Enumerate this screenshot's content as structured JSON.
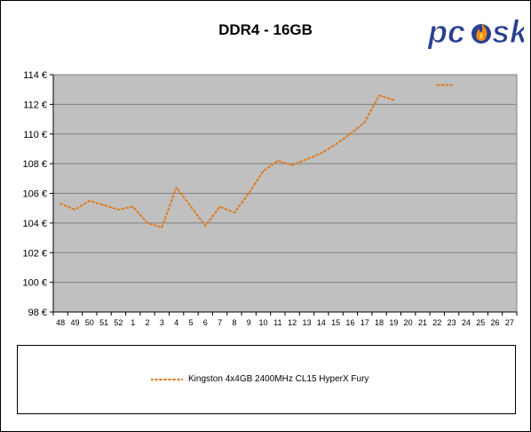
{
  "colors": {
    "plot_background": "#c0c0c0",
    "series_line": "#e07b20",
    "grid": "#808080"
  },
  "logo": {
    "text": "pcšsk",
    "icon": "flame-logo-icon",
    "colors": {
      "text": "#2a3f8f",
      "flame": "#f08a1c"
    }
  },
  "chart_data": {
    "type": "line",
    "title": "DDR4 - 16GB",
    "xlabel": "",
    "ylabel": "",
    "categories": [
      "48",
      "49",
      "50",
      "51",
      "52",
      "1",
      "2",
      "3",
      "4",
      "5",
      "6",
      "7",
      "8",
      "9",
      "10",
      "11",
      "12",
      "13",
      "14",
      "15",
      "16",
      "17",
      "18",
      "19",
      "20",
      "21",
      "22",
      "23",
      "24",
      "25",
      "26",
      "27"
    ],
    "ylim": [
      98,
      114
    ],
    "yticks": [
      98,
      100,
      102,
      104,
      106,
      108,
      110,
      112,
      114
    ],
    "ytick_suffix": " €",
    "grid": "horizontal",
    "legend_position": "bottom",
    "series": [
      {
        "name": "Kingston 4x4GB 2400MHz CL15 HyperX Fury",
        "style": "dotted",
        "values": [
          105.3,
          104.9,
          105.5,
          105.2,
          104.9,
          105.1,
          104.0,
          103.7,
          106.4,
          105.1,
          103.8,
          105.1,
          104.7,
          106.0,
          107.5,
          108.2,
          107.9,
          108.3,
          108.7,
          109.3,
          110.0,
          110.8,
          112.6,
          112.3,
          null,
          null,
          113.3,
          113.3,
          null,
          null,
          null,
          null
        ]
      }
    ]
  }
}
